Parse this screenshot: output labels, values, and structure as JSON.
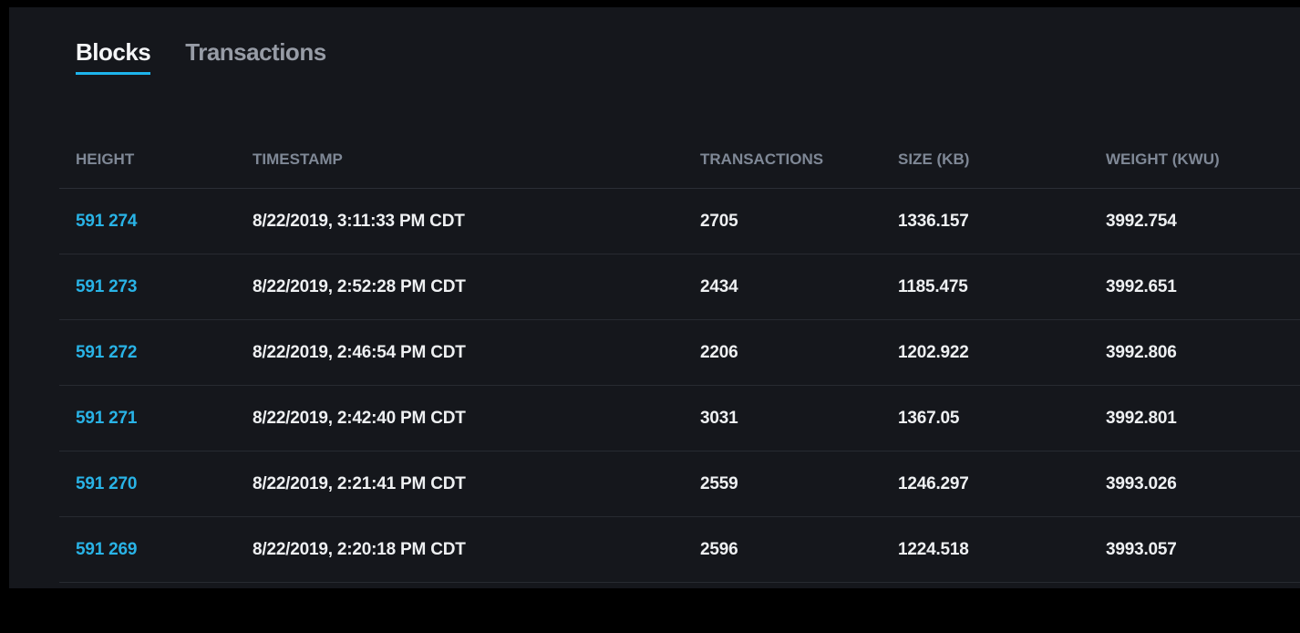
{
  "tabs": [
    {
      "label": "Blocks",
      "active": true
    },
    {
      "label": "Transactions",
      "active": false
    }
  ],
  "table": {
    "headers": [
      "HEIGHT",
      "TIMESTAMP",
      "TRANSACTIONS",
      "SIZE (KB)",
      "WEIGHT (KWU)"
    ],
    "rows": [
      {
        "height": "591 274",
        "timestamp": "8/22/2019, 3:11:33 PM CDT",
        "transactions": "2705",
        "size": "1336.157",
        "weight": "3992.754"
      },
      {
        "height": "591 273",
        "timestamp": "8/22/2019, 2:52:28 PM CDT",
        "transactions": "2434",
        "size": "1185.475",
        "weight": "3992.651"
      },
      {
        "height": "591 272",
        "timestamp": "8/22/2019, 2:46:54 PM CDT",
        "transactions": "2206",
        "size": "1202.922",
        "weight": "3992.806"
      },
      {
        "height": "591 271",
        "timestamp": "8/22/2019, 2:42:40 PM CDT",
        "transactions": "3031",
        "size": "1367.05",
        "weight": "3992.801"
      },
      {
        "height": "591 270",
        "timestamp": "8/22/2019, 2:21:41 PM CDT",
        "transactions": "2559",
        "size": "1246.297",
        "weight": "3993.026"
      },
      {
        "height": "591 269",
        "timestamp": "8/22/2019, 2:20:18 PM CDT",
        "transactions": "2596",
        "size": "1224.518",
        "weight": "3993.057"
      }
    ]
  },
  "colors": {
    "page_bg": "#000000",
    "panel_bg": "#15171c",
    "accent": "#1db4ec",
    "link": "#29b3e6",
    "separator": "#272a31"
  }
}
